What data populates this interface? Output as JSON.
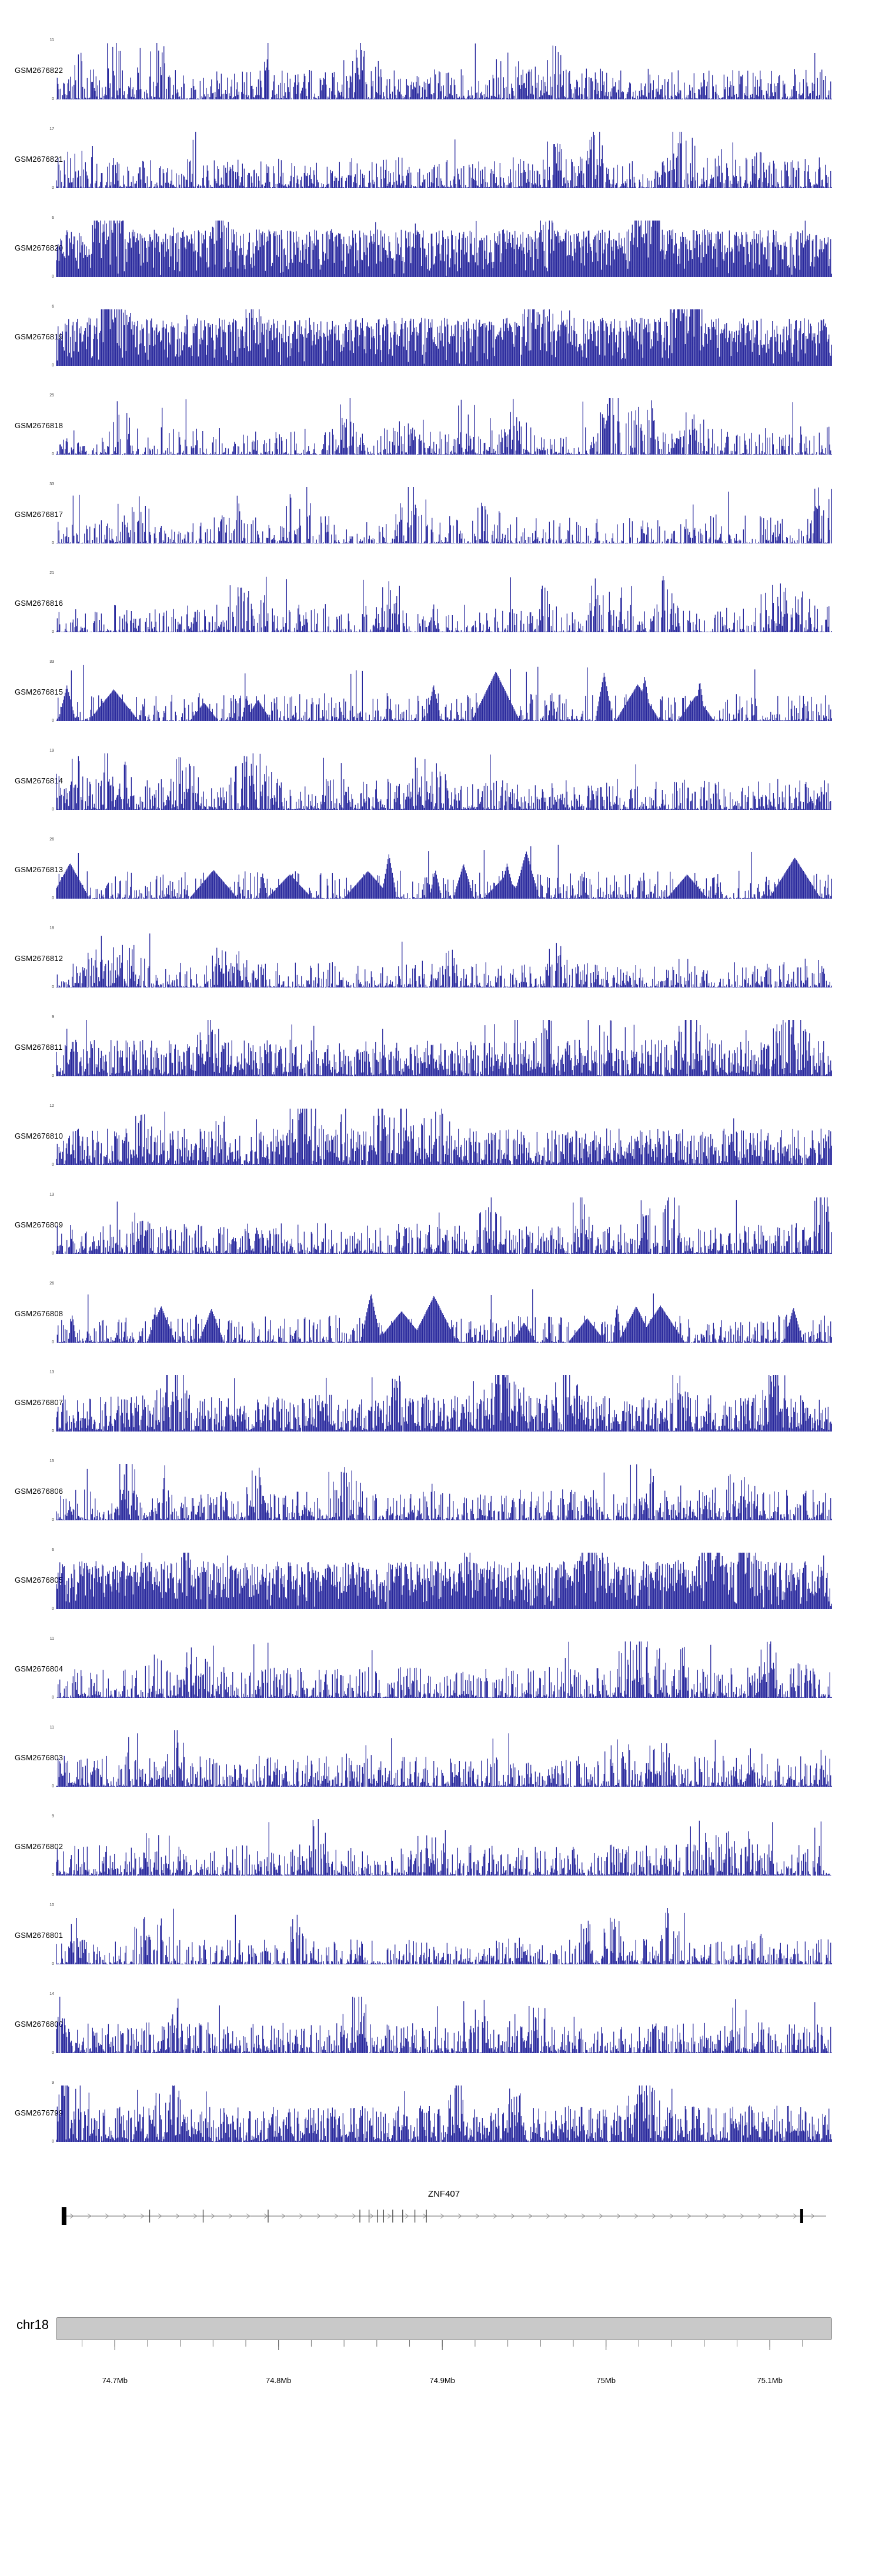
{
  "chart_data": {
    "type": "area",
    "description": "Genome browser read-coverage (wiggle) tracks around the ZNF407 locus",
    "signal_color": "#00008b",
    "region": {
      "chrom": "chr18",
      "start_mb": 74.664,
      "end_mb": 75.138
    },
    "x_ticks": [
      {
        "mb": 74.7,
        "label": "74.7Mb"
      },
      {
        "mb": 74.8,
        "label": "74.8Mb"
      },
      {
        "mb": 74.9,
        "label": "74.9Mb"
      },
      {
        "mb": 75.0,
        "label": "75Mb"
      },
      {
        "mb": 75.1,
        "label": "75.1Mb"
      }
    ],
    "tracks": [
      {
        "name": "GSM2676822",
        "ymax": 11,
        "ymin": 0,
        "pattern": "medium"
      },
      {
        "name": "GSM2676821",
        "ymax": 17,
        "ymin": 0,
        "pattern": "medium"
      },
      {
        "name": "GSM2676820",
        "ymax": 6,
        "ymin": 0,
        "pattern": "dense"
      },
      {
        "name": "GSM2676819",
        "ymax": 6,
        "ymin": 0,
        "pattern": "dense"
      },
      {
        "name": "GSM2676818",
        "ymax": 25,
        "ymin": 0,
        "pattern": "peaky"
      },
      {
        "name": "GSM2676817",
        "ymax": 33,
        "ymin": 0,
        "pattern": "peaky"
      },
      {
        "name": "GSM2676816",
        "ymax": 21,
        "ymin": 0,
        "pattern": "peaky"
      },
      {
        "name": "GSM2676815",
        "ymax": 33,
        "ymin": 0,
        "pattern": "peaky-tri"
      },
      {
        "name": "GSM2676814",
        "ymax": 19,
        "ymin": 0,
        "pattern": "medium"
      },
      {
        "name": "GSM2676813",
        "ymax": 26,
        "ymin": 0,
        "pattern": "peaky-tri"
      },
      {
        "name": "GSM2676812",
        "ymax": 18,
        "ymin": 0,
        "pattern": "medium-sparse"
      },
      {
        "name": "GSM2676811",
        "ymax": 9,
        "ymin": 0,
        "pattern": "dense-med"
      },
      {
        "name": "GSM2676810",
        "ymax": 12,
        "ymin": 0,
        "pattern": "dense-med"
      },
      {
        "name": "GSM2676809",
        "ymax": 13,
        "ymin": 0,
        "pattern": "medium"
      },
      {
        "name": "GSM2676808",
        "ymax": 26,
        "ymin": 0,
        "pattern": "peaky-tri"
      },
      {
        "name": "GSM2676807",
        "ymax": 13,
        "ymin": 0,
        "pattern": "dense-med"
      },
      {
        "name": "GSM2676806",
        "ymax": 15,
        "ymin": 0,
        "pattern": "medium"
      },
      {
        "name": "GSM2676805",
        "ymax": 6,
        "ymin": 0,
        "pattern": "dense"
      },
      {
        "name": "GSM2676804",
        "ymax": 11,
        "ymin": 0,
        "pattern": "medium"
      },
      {
        "name": "GSM2676803",
        "ymax": 11,
        "ymin": 0,
        "pattern": "medium"
      },
      {
        "name": "GSM2676802",
        "ymax": 9,
        "ymin": 0,
        "pattern": "medium"
      },
      {
        "name": "GSM2676801",
        "ymax": 10,
        "ymin": 0,
        "pattern": "medium-sparse"
      },
      {
        "name": "GSM2676800",
        "ymax": 14,
        "ymin": 0,
        "pattern": "medium"
      },
      {
        "name": "GSM2676799",
        "ymax": 9,
        "ymin": 0,
        "pattern": "dense-med"
      }
    ],
    "gene": {
      "name": "ZNF407",
      "strand": "+",
      "exons_frac": [
        0.115,
        0.185,
        0.27,
        0.39,
        0.402,
        0.413,
        0.421,
        0.433,
        0.446,
        0.462,
        0.477
      ],
      "blocks": [
        {
          "pos": 0.003,
          "width": 8,
          "height": 30
        },
        {
          "pos": 0.968,
          "width": 5,
          "height": 24
        }
      ]
    },
    "chromosome": {
      "label": "chr18"
    }
  }
}
